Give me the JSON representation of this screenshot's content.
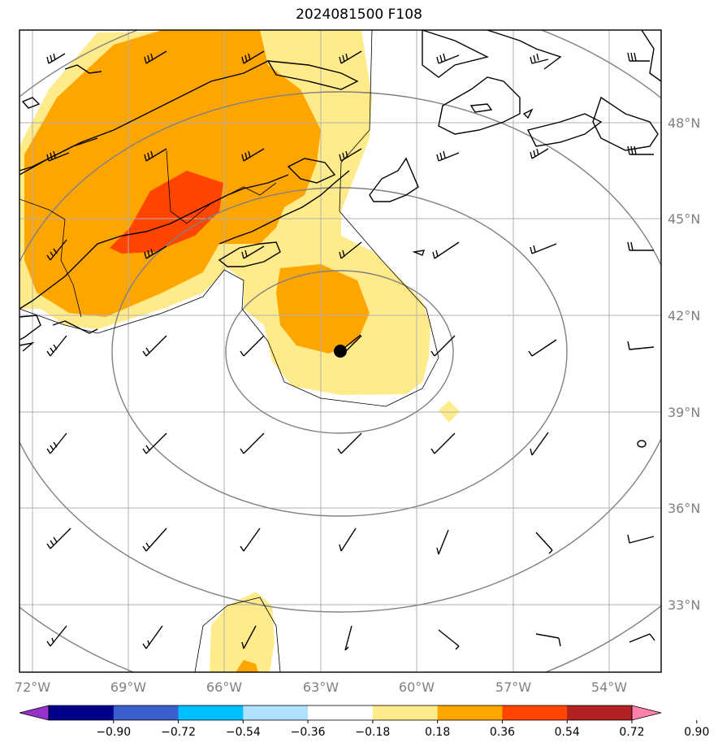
{
  "title": "2024081500 F108",
  "lon_labels": [
    "72°W",
    "69°W",
    "66°W",
    "63°W",
    "60°W",
    "57°W",
    "54°W"
  ],
  "lat_labels": [
    "48°N",
    "45°N",
    "42°N",
    "39°N",
    "36°N",
    "33°N"
  ],
  "colorbar": {
    "ticks": [
      "−0.90",
      "−0.72",
      "−0.54",
      "−0.36",
      "−0.18",
      "0.18",
      "0.36",
      "0.54",
      "0.72",
      "0.90"
    ],
    "colors": [
      "#9932cc",
      "#00008b",
      "#3a5fcd",
      "#00bfff",
      "#b0e2ff",
      "#ffffff",
      "#ffeb8a",
      "#ffa500",
      "#ff4500",
      "#b22222",
      "#ff82ab"
    ]
  },
  "field_colors": {
    "light": "#ffeb8a",
    "mid": "#ffa500",
    "high": "#ff4500"
  },
  "storm_center": {
    "lon": -62.5,
    "lat": 40.9
  }
}
